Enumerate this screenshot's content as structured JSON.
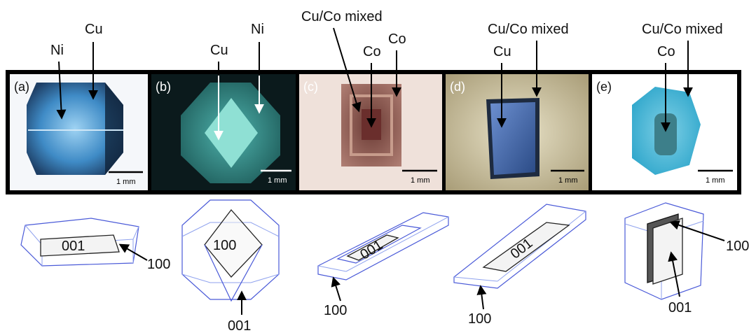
{
  "panels": [
    {
      "letter": "(a)",
      "scale": "1 mm",
      "bg": "#f5f7fa",
      "crystal_color": "#3d7fc0"
    },
    {
      "letter": "(b)",
      "scale": "1 mm",
      "bg": "#0b1a1c",
      "crystal_color": "#2c8c88"
    },
    {
      "letter": "(c)",
      "scale": "1 mm",
      "bg": "#efe1da",
      "crystal_color": "#8a5a50"
    },
    {
      "letter": "(d)",
      "scale": "1 mm",
      "bg": "#cfc6a8",
      "crystal_color": "#3e66a8"
    },
    {
      "letter": "(e)",
      "scale": "1 mm",
      "bg": "#ffffff",
      "crystal_color": "#46b6d6"
    }
  ],
  "top_labels": {
    "a_ni": "Ni",
    "a_cu": "Cu",
    "b_cu": "Cu",
    "b_ni": "Ni",
    "c_mixed": "Cu/Co mixed",
    "c_co_inner": "Co",
    "c_co_outer": "Co",
    "d_cu": "Cu",
    "d_mixed": "Cu/Co mixed",
    "e_mixed": "Cu/Co mixed",
    "e_co": "Co"
  },
  "face_labels": {
    "a_face_top": "001",
    "a_face_side": "100",
    "b_face_top": "100",
    "b_face_bottom": "001",
    "c_face_top": "001",
    "c_face_side": "100",
    "d_face_top": "001",
    "d_face_side": "100",
    "e_face_side": "100",
    "e_face_bottom": "001"
  }
}
